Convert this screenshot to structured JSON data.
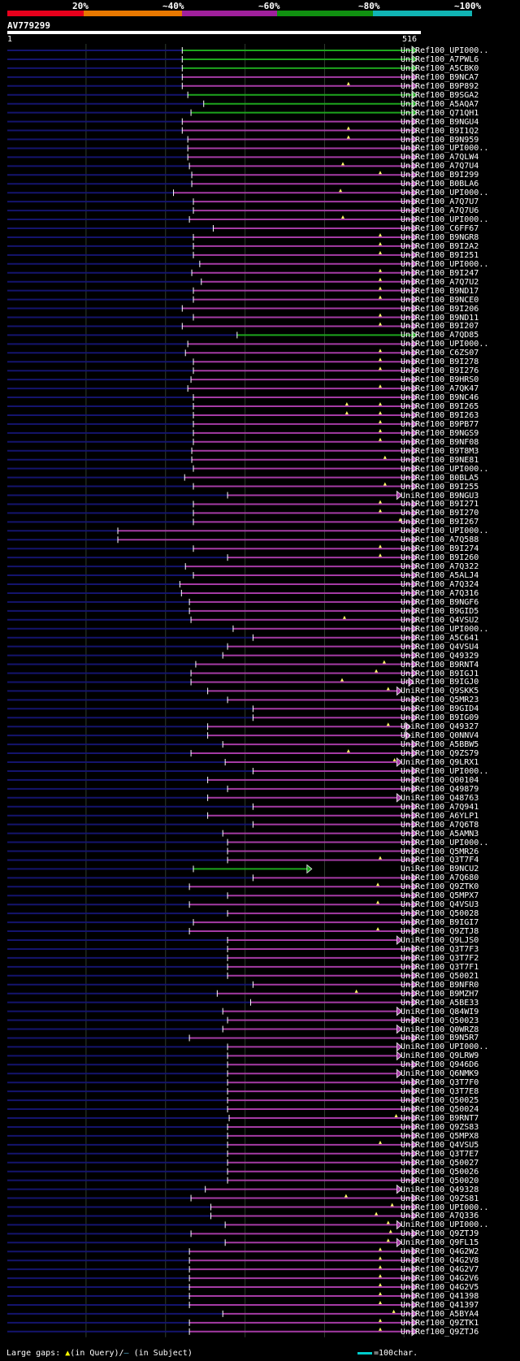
{
  "legend": {
    "labels": [
      "20%",
      "~40%",
      "~60%",
      "~80%",
      "~100%"
    ],
    "colors": [
      "#e8001c",
      "#e87800",
      "#a0209c",
      "#109010",
      "#10b4b4"
    ]
  },
  "query": {
    "name": "AV779299",
    "start": "1",
    "end": "516",
    "length": 516
  },
  "colors": {
    "green": "#1da51d",
    "purple": "#a53ba5",
    "cyan": "#10b4b4",
    "unaligned": "#14146e",
    "gap": "#ffff66",
    "grid": "#2e3a2e"
  },
  "hits": [
    {
      "name": "UniRef100_UPI000..",
      "s": 221,
      "e": 516,
      "c": "green",
      "g": []
    },
    {
      "name": "UniRef100_A7PWL6",
      "s": 221,
      "e": 516,
      "c": "green",
      "g": []
    },
    {
      "name": "UniRef100_A5CBK0",
      "s": 221,
      "e": 516,
      "c": "green",
      "g": []
    },
    {
      "name": "UniRef100_B9NCA7",
      "s": 221,
      "e": 516,
      "c": "purple",
      "g": []
    },
    {
      "name": "UniRef100_B9P892",
      "s": 221,
      "e": 516,
      "c": "purple",
      "g": [
        430
      ]
    },
    {
      "name": "UniRef100_B9SGA2",
      "s": 228,
      "e": 516,
      "c": "green",
      "g": []
    },
    {
      "name": "UniRef100_A5AQA7",
      "s": 248,
      "e": 516,
      "c": "green",
      "g": []
    },
    {
      "name": "UniRef100_Q71QH1",
      "s": 232,
      "e": 516,
      "c": "green",
      "g": []
    },
    {
      "name": "UniRef100_B9NGU4",
      "s": 221,
      "e": 516,
      "c": "purple",
      "g": []
    },
    {
      "name": "UniRef100_B9I1Q2",
      "s": 221,
      "e": 516,
      "c": "purple",
      "g": [
        430
      ]
    },
    {
      "name": "UniRef100_B9N959",
      "s": 228,
      "e": 516,
      "c": "purple",
      "g": [
        430
      ]
    },
    {
      "name": "UniRef100_UPI000..",
      "s": 228,
      "e": 516,
      "c": "purple",
      "g": []
    },
    {
      "name": "UniRef100_A7QLW4",
      "s": 228,
      "e": 516,
      "c": "purple",
      "g": []
    },
    {
      "name": "UniRef100_A7Q7U4",
      "s": 230,
      "e": 516,
      "c": "purple",
      "g": [
        423
      ]
    },
    {
      "name": "UniRef100_B9I299",
      "s": 233,
      "e": 516,
      "c": "purple",
      "g": [
        470
      ]
    },
    {
      "name": "UniRef100_B0BLA6",
      "s": 233,
      "e": 516,
      "c": "purple",
      "g": []
    },
    {
      "name": "UniRef100_UPI000..",
      "s": 210,
      "e": 516,
      "c": "purple",
      "g": [
        420
      ]
    },
    {
      "name": "UniRef100_A7Q7U7",
      "s": 235,
      "e": 516,
      "c": "purple",
      "g": []
    },
    {
      "name": "UniRef100_A7Q7U6",
      "s": 235,
      "e": 516,
      "c": "purple",
      "g": []
    },
    {
      "name": "UniRef100_UPI000..",
      "s": 230,
      "e": 516,
      "c": "purple",
      "g": [
        423
      ]
    },
    {
      "name": "UniRef100_C6FF67",
      "s": 260,
      "e": 516,
      "c": "purple",
      "g": []
    },
    {
      "name": "UniRef100_B9NGR8",
      "s": 235,
      "e": 516,
      "c": "purple",
      "g": [
        470
      ]
    },
    {
      "name": "UniRef100_B9I2A2",
      "s": 235,
      "e": 516,
      "c": "purple",
      "g": [
        470
      ]
    },
    {
      "name": "UniRef100_B9I251",
      "s": 235,
      "e": 516,
      "c": "purple",
      "g": [
        470
      ]
    },
    {
      "name": "UniRef100_UPI000..",
      "s": 243,
      "e": 516,
      "c": "purple",
      "g": []
    },
    {
      "name": "UniRef100_B9I247",
      "s": 233,
      "e": 516,
      "c": "purple",
      "g": [
        470
      ]
    },
    {
      "name": "UniRef100_A7Q7U2",
      "s": 245,
      "e": 516,
      "c": "purple",
      "g": [
        470
      ]
    },
    {
      "name": "UniRef100_B9ND17",
      "s": 235,
      "e": 516,
      "c": "purple",
      "g": [
        470
      ]
    },
    {
      "name": "UniRef100_B9NCE0",
      "s": 235,
      "e": 516,
      "c": "purple",
      "g": [
        470
      ]
    },
    {
      "name": "UniRef100_B9I206",
      "s": 221,
      "e": 516,
      "c": "purple",
      "g": []
    },
    {
      "name": "UniRef100_B9ND11",
      "s": 235,
      "e": 516,
      "c": "purple",
      "g": [
        470
      ]
    },
    {
      "name": "UniRef100_B9I207",
      "s": 221,
      "e": 516,
      "c": "purple",
      "g": [
        470
      ]
    },
    {
      "name": "UniRef100_A7QD85",
      "s": 290,
      "e": 516,
      "c": "green",
      "g": []
    },
    {
      "name": "UniRef100_UPI000..",
      "s": 228,
      "e": 516,
      "c": "purple",
      "g": []
    },
    {
      "name": "UniRef100_C6ZS07",
      "s": 225,
      "e": 516,
      "c": "purple",
      "g": [
        470
      ]
    },
    {
      "name": "UniRef100_B9I278",
      "s": 235,
      "e": 516,
      "c": "purple",
      "g": [
        470
      ]
    },
    {
      "name": "UniRef100_B9I276",
      "s": 235,
      "e": 516,
      "c": "purple",
      "g": [
        470
      ]
    },
    {
      "name": "UniRef100_B9HRS0",
      "s": 232,
      "e": 516,
      "c": "purple",
      "g": []
    },
    {
      "name": "UniRef100_A7QK47",
      "s": 228,
      "e": 516,
      "c": "purple",
      "g": [
        470
      ]
    },
    {
      "name": "UniRef100_B9NC46",
      "s": 235,
      "e": 516,
      "c": "purple",
      "g": []
    },
    {
      "name": "UniRef100_B9I265",
      "s": 235,
      "e": 516,
      "c": "purple",
      "g": [
        428,
        470
      ]
    },
    {
      "name": "UniRef100_B9I263",
      "s": 235,
      "e": 516,
      "c": "purple",
      "g": [
        428,
        470
      ]
    },
    {
      "name": "UniRef100_B9PB77",
      "s": 235,
      "e": 516,
      "c": "purple",
      "g": [
        470
      ]
    },
    {
      "name": "UniRef100_B9NGS9",
      "s": 235,
      "e": 516,
      "c": "purple",
      "g": [
        470
      ]
    },
    {
      "name": "UniRef100_B9NF08",
      "s": 235,
      "e": 516,
      "c": "purple",
      "g": [
        470
      ]
    },
    {
      "name": "UniRef100_B9T8M3",
      "s": 233,
      "e": 516,
      "c": "purple",
      "g": []
    },
    {
      "name": "UniRef100_B9NE81",
      "s": 233,
      "e": 516,
      "c": "purple",
      "g": [
        476
      ]
    },
    {
      "name": "UniRef100_UPI000..",
      "s": 235,
      "e": 516,
      "c": "purple",
      "g": []
    },
    {
      "name": "UniRef100_B0BLA5",
      "s": 224,
      "e": 516,
      "c": "purple",
      "g": []
    },
    {
      "name": "UniRef100_B9I255",
      "s": 235,
      "e": 516,
      "c": "purple",
      "g": [
        476
      ]
    },
    {
      "name": "UniRef100_B9NGU3",
      "s": 278,
      "e": 497,
      "c": "purple",
      "g": []
    },
    {
      "name": "UniRef100_B9I271",
      "s": 235,
      "e": 516,
      "c": "purple",
      "g": [
        470
      ]
    },
    {
      "name": "UniRef100_B9I270",
      "s": 235,
      "e": 516,
      "c": "purple",
      "g": [
        470
      ]
    },
    {
      "name": "UniRef100_B9I267",
      "s": 235,
      "e": 516,
      "c": "purple",
      "g": [
        495
      ]
    },
    {
      "name": "UniRef100_UPI000..",
      "s": 140,
      "e": 516,
      "c": "purple",
      "g": []
    },
    {
      "name": "UniRef100_A7Q588",
      "s": 140,
      "e": 516,
      "c": "purple",
      "g": []
    },
    {
      "name": "UniRef100_B9I274",
      "s": 235,
      "e": 516,
      "c": "purple",
      "g": [
        470
      ]
    },
    {
      "name": "UniRef100_B9I260",
      "s": 278,
      "e": 516,
      "c": "purple",
      "g": [
        470
      ]
    },
    {
      "name": "UniRef100_A7Q322",
      "s": 225,
      "e": 516,
      "c": "purple",
      "g": []
    },
    {
      "name": "UniRef100_A5ALJ4",
      "s": 235,
      "e": 516,
      "c": "purple",
      "g": []
    },
    {
      "name": "UniRef100_A7Q324",
      "s": 218,
      "e": 516,
      "c": "purple",
      "g": []
    },
    {
      "name": "UniRef100_A7Q316",
      "s": 220,
      "e": 516,
      "c": "purple",
      "g": []
    },
    {
      "name": "UniRef100_B9NGF6",
      "s": 230,
      "e": 516,
      "c": "purple",
      "g": []
    },
    {
      "name": "UniRef100_B9GID5",
      "s": 230,
      "e": 516,
      "c": "purple",
      "g": []
    },
    {
      "name": "UniRef100_Q4VSU2",
      "s": 232,
      "e": 516,
      "c": "purple",
      "g": [
        425
      ]
    },
    {
      "name": "UniRef100_UPI000..",
      "s": 285,
      "e": 516,
      "c": "purple",
      "g": []
    },
    {
      "name": "UniRef100_A5C641",
      "s": 310,
      "e": 516,
      "c": "purple",
      "g": []
    },
    {
      "name": "UniRef100_Q4VSU4",
      "s": 278,
      "e": 516,
      "c": "purple",
      "g": []
    },
    {
      "name": "UniRef100_Q49329",
      "s": 272,
      "e": 516,
      "c": "purple",
      "g": []
    },
    {
      "name": "UniRef100_B9RNT4",
      "s": 238,
      "e": 516,
      "c": "purple",
      "g": [
        475
      ]
    },
    {
      "name": "UniRef100_B9IGJ1",
      "s": 232,
      "e": 516,
      "c": "purple",
      "g": [
        465
      ]
    },
    {
      "name": "UniRef100_B9IGJ0",
      "s": 232,
      "e": 512,
      "c": "purple",
      "g": [
        422
      ]
    },
    {
      "name": "UniRef100_Q9SKK5",
      "s": 253,
      "e": 497,
      "c": "purple",
      "g": [
        480
      ]
    },
    {
      "name": "UniRef100_Q5MR23",
      "s": 278,
      "e": 516,
      "c": "purple",
      "g": []
    },
    {
      "name": "UniRef100_B9GID4",
      "s": 310,
      "e": 516,
      "c": "purple",
      "g": []
    },
    {
      "name": "UniRef100_B9IG09",
      "s": 310,
      "e": 516,
      "c": "purple",
      "g": []
    },
    {
      "name": "UniRef100_Q49327",
      "s": 253,
      "e": 508,
      "c": "purple",
      "g": [
        480
      ]
    },
    {
      "name": "UniRef100_Q0NNV4",
      "s": 253,
      "e": 508,
      "c": "purple",
      "g": []
    },
    {
      "name": "UniRef100_A5BBW5",
      "s": 272,
      "e": 516,
      "c": "purple",
      "g": []
    },
    {
      "name": "UniRef100_Q9ZS79",
      "s": 232,
      "e": 516,
      "c": "purple",
      "g": [
        430
      ]
    },
    {
      "name": "UniRef100_Q9LRX1",
      "s": 275,
      "e": 497,
      "c": "purple",
      "g": [
        488
      ]
    },
    {
      "name": "UniRef100_UPI000..",
      "s": 310,
      "e": 516,
      "c": "purple",
      "g": []
    },
    {
      "name": "UniRef100_Q00104",
      "s": 253,
      "e": 516,
      "c": "purple",
      "g": []
    },
    {
      "name": "UniRef100_Q49879",
      "s": 278,
      "e": 516,
      "c": "purple",
      "g": []
    },
    {
      "name": "UniRef100_Q48763",
      "s": 253,
      "e": 497,
      "c": "purple",
      "g": []
    },
    {
      "name": "UniRef100_A7Q941",
      "s": 310,
      "e": 516,
      "c": "purple",
      "g": []
    },
    {
      "name": "UniRef100_A6YLP1",
      "s": 253,
      "e": 516,
      "c": "purple",
      "g": []
    },
    {
      "name": "UniRef100_A7Q6T8",
      "s": 310,
      "e": 516,
      "c": "purple",
      "g": []
    },
    {
      "name": "UniRef100_A5AMN3",
      "s": 272,
      "e": 516,
      "c": "purple",
      "g": []
    },
    {
      "name": "UniRef100_UPI000..",
      "s": 278,
      "e": 516,
      "c": "purple",
      "g": []
    },
    {
      "name": "UniRef100_Q5MR26",
      "s": 278,
      "e": 516,
      "c": "purple",
      "g": []
    },
    {
      "name": "UniRef100_Q3T7F4",
      "s": 278,
      "e": 516,
      "c": "purple",
      "g": [
        470
      ]
    },
    {
      "name": "UniRef100_B9NCU2",
      "s": 235,
      "e": 384,
      "c": "green",
      "g": []
    },
    {
      "name": "UniRef100_A7Q680",
      "s": 310,
      "e": 516,
      "c": "purple",
      "g": []
    },
    {
      "name": "UniRef100_Q9ZTK0",
      "s": 230,
      "e": 516,
      "c": "purple",
      "g": [
        467
      ]
    },
    {
      "name": "UniRef100_Q5MPX7",
      "s": 278,
      "e": 516,
      "c": "purple",
      "g": []
    },
    {
      "name": "UniRef100_Q4VSU3",
      "s": 230,
      "e": 516,
      "c": "purple",
      "g": [
        467
      ]
    },
    {
      "name": "UniRef100_Q50028",
      "s": 278,
      "e": 516,
      "c": "purple",
      "g": []
    },
    {
      "name": "UniRef100_B9IGI7",
      "s": 235,
      "e": 516,
      "c": "purple",
      "g": []
    },
    {
      "name": "UniRef100_Q9ZTJ8",
      "s": 230,
      "e": 516,
      "c": "purple",
      "g": [
        467
      ]
    },
    {
      "name": "UniRef100_Q9LJS0",
      "s": 278,
      "e": 497,
      "c": "purple",
      "g": []
    },
    {
      "name": "UniRef100_Q3T7F3",
      "s": 278,
      "e": 516,
      "c": "purple",
      "g": []
    },
    {
      "name": "UniRef100_Q3T7F2",
      "s": 278,
      "e": 516,
      "c": "purple",
      "g": []
    },
    {
      "name": "UniRef100_Q3T7F1",
      "s": 278,
      "e": 516,
      "c": "purple",
      "g": []
    },
    {
      "name": "UniRef100_Q50021",
      "s": 278,
      "e": 516,
      "c": "purple",
      "g": []
    },
    {
      "name": "UniRef100_B9NFR0",
      "s": 310,
      "e": 516,
      "c": "purple",
      "g": []
    },
    {
      "name": "UniRef100_B9MZH7",
      "s": 265,
      "e": 516,
      "c": "purple",
      "g": [
        440
      ]
    },
    {
      "name": "UniRef100_A5BE33",
      "s": 307,
      "e": 516,
      "c": "purple",
      "g": []
    },
    {
      "name": "UniRef100_Q84WI9",
      "s": 272,
      "e": 497,
      "c": "purple",
      "g": []
    },
    {
      "name": "UniRef100_Q50023",
      "s": 278,
      "e": 516,
      "c": "purple",
      "g": []
    },
    {
      "name": "UniRef100_Q0WRZ8",
      "s": 272,
      "e": 497,
      "c": "purple",
      "g": []
    },
    {
      "name": "UniRef100_B9N5R7",
      "s": 230,
      "e": 516,
      "c": "purple",
      "g": []
    },
    {
      "name": "UniRef100_UPI000..",
      "s": 278,
      "e": 497,
      "c": "purple",
      "g": []
    },
    {
      "name": "UniRef100_Q9LRW9",
      "s": 278,
      "e": 497,
      "c": "purple",
      "g": []
    },
    {
      "name": "UniRef100_Q946D6",
      "s": 278,
      "e": 516,
      "c": "purple",
      "g": []
    },
    {
      "name": "UniRef100_Q6NMK9",
      "s": 278,
      "e": 497,
      "c": "purple",
      "g": []
    },
    {
      "name": "UniRef100_Q3T7F0",
      "s": 278,
      "e": 516,
      "c": "purple",
      "g": []
    },
    {
      "name": "UniRef100_Q3T7E8",
      "s": 278,
      "e": 516,
      "c": "purple",
      "g": []
    },
    {
      "name": "UniRef100_Q50025",
      "s": 278,
      "e": 516,
      "c": "purple",
      "g": []
    },
    {
      "name": "UniRef100_Q50024",
      "s": 278,
      "e": 516,
      "c": "purple",
      "g": []
    },
    {
      "name": "UniRef100_B9RNT7",
      "s": 280,
      "e": 516,
      "c": "purple",
      "g": [
        490
      ]
    },
    {
      "name": "UniRef100_Q9ZS83",
      "s": 278,
      "e": 516,
      "c": "purple",
      "g": []
    },
    {
      "name": "UniRef100_Q5MPX8",
      "s": 278,
      "e": 516,
      "c": "purple",
      "g": []
    },
    {
      "name": "UniRef100_Q4VSU5",
      "s": 278,
      "e": 516,
      "c": "purple",
      "g": [
        470
      ]
    },
    {
      "name": "UniRef100_Q3T7E7",
      "s": 278,
      "e": 516,
      "c": "purple",
      "g": []
    },
    {
      "name": "UniRef100_Q50027",
      "s": 278,
      "e": 516,
      "c": "purple",
      "g": []
    },
    {
      "name": "UniRef100_Q50026",
      "s": 278,
      "e": 516,
      "c": "purple",
      "g": []
    },
    {
      "name": "UniRef100_Q50020",
      "s": 278,
      "e": 516,
      "c": "purple",
      "g": []
    },
    {
      "name": "UniRef100_Q49328",
      "s": 250,
      "e": 497,
      "c": "purple",
      "g": []
    },
    {
      "name": "UniRef100_Q9ZS81",
      "s": 232,
      "e": 516,
      "c": "purple",
      "g": [
        427
      ]
    },
    {
      "name": "UniRef100_UPI000..",
      "s": 257,
      "e": 516,
      "c": "purple",
      "g": [
        485
      ]
    },
    {
      "name": "UniRef100_A7Q336",
      "s": 257,
      "e": 516,
      "c": "purple",
      "g": [
        465
      ]
    },
    {
      "name": "UniRef100_UPI000..",
      "s": 275,
      "e": 497,
      "c": "purple",
      "g": [
        480
      ]
    },
    {
      "name": "UniRef100_Q9ZTJ9",
      "s": 232,
      "e": 516,
      "c": "purple",
      "g": [
        483
      ]
    },
    {
      "name": "UniRef100_Q9FL15",
      "s": 275,
      "e": 497,
      "c": "purple",
      "g": [
        480
      ]
    },
    {
      "name": "UniRef100_Q4G2W2",
      "s": 230,
      "e": 516,
      "c": "purple",
      "g": [
        470
      ]
    },
    {
      "name": "UniRef100_Q4G2V8",
      "s": 230,
      "e": 516,
      "c": "purple",
      "g": [
        470
      ]
    },
    {
      "name": "UniRef100_Q4G2V7",
      "s": 230,
      "e": 516,
      "c": "purple",
      "g": [
        470
      ]
    },
    {
      "name": "UniRef100_Q4G2V6",
      "s": 230,
      "e": 516,
      "c": "purple",
      "g": [
        470
      ]
    },
    {
      "name": "UniRef100_Q4G2V5",
      "s": 230,
      "e": 516,
      "c": "purple",
      "g": [
        470
      ]
    },
    {
      "name": "UniRef100_Q41398",
      "s": 230,
      "e": 516,
      "c": "purple",
      "g": [
        470
      ]
    },
    {
      "name": "UniRef100_Q41397",
      "s": 230,
      "e": 516,
      "c": "purple",
      "g": [
        470
      ]
    },
    {
      "name": "UniRef100_A5BYA4",
      "s": 272,
      "e": 516,
      "c": "purple",
      "g": [
        487
      ]
    },
    {
      "name": "UniRef100_Q9ZTK1",
      "s": 230,
      "e": 516,
      "c": "purple",
      "g": [
        470
      ]
    },
    {
      "name": "UniRef100_Q9ZTJ6",
      "s": 230,
      "e": 516,
      "c": "purple",
      "g": [
        470
      ]
    }
  ],
  "footer": {
    "label": "Large gaps:",
    "gap_query": "(in Query)/",
    "gap_subject": "(in Subject)",
    "tri": "▲",
    "dash": "–"
  },
  "scale": {
    "label": "=100char."
  }
}
